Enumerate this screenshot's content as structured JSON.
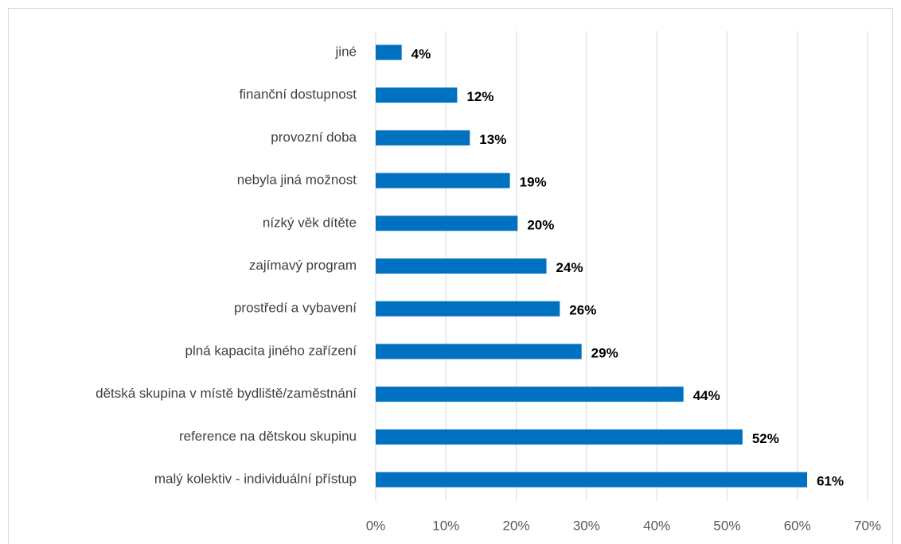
{
  "chart_data": {
    "type": "barh",
    "categories": [
      "jiné",
      "finanční dostupnost",
      "provozní doba",
      "nebyla jiná možnost",
      "nízký věk dítěte",
      "zajímavý program",
      "prostředí a vybavení",
      "plná kapacita jiného zařízení",
      "dětská skupina v místě bydliště/zaměstnání",
      "reference na dětskou skupinu",
      "malý kolektiv - individuální přístup"
    ],
    "values": [
      3.7,
      11.6,
      13.4,
      19.1,
      20.2,
      24.3,
      26.2,
      29.3,
      43.8,
      52.2,
      61.4
    ],
    "value_labels": [
      "4%",
      "12%",
      "13%",
      "19%",
      "20%",
      "24%",
      "26%",
      "29%",
      "44%",
      "52%",
      "61%"
    ],
    "color": "#0070c0",
    "xlim": [
      0,
      70
    ],
    "xticks": [
      {
        "value": 0,
        "label": "0%"
      },
      {
        "value": 10,
        "label": "10%"
      },
      {
        "value": 20,
        "label": "20%"
      },
      {
        "value": 30,
        "label": "30%"
      },
      {
        "value": 40,
        "label": "40%"
      },
      {
        "value": 50,
        "label": "50%"
      },
      {
        "value": 60,
        "label": "60%"
      },
      {
        "value": 70,
        "label": "70%"
      }
    ],
    "grid": true
  }
}
